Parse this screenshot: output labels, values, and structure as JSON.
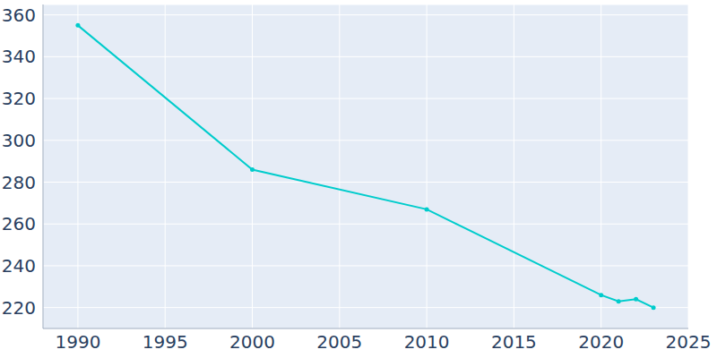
{
  "chart_data": {
    "type": "line",
    "x": [
      1990,
      2000,
      2010,
      2020,
      2021,
      2022,
      2023
    ],
    "values": [
      355,
      286,
      267,
      226,
      223,
      224,
      220
    ],
    "color": "#00cccc",
    "marker": "circle",
    "line_style": "solid",
    "xlim": [
      1988,
      2025
    ],
    "xticks": [
      1990,
      1995,
      2000,
      2005,
      2010,
      2015,
      2020,
      2025
    ],
    "ylim": [
      210,
      365
    ],
    "yticks": [
      220,
      240,
      260,
      280,
      300,
      320,
      340,
      360
    ],
    "grid": true
  }
}
